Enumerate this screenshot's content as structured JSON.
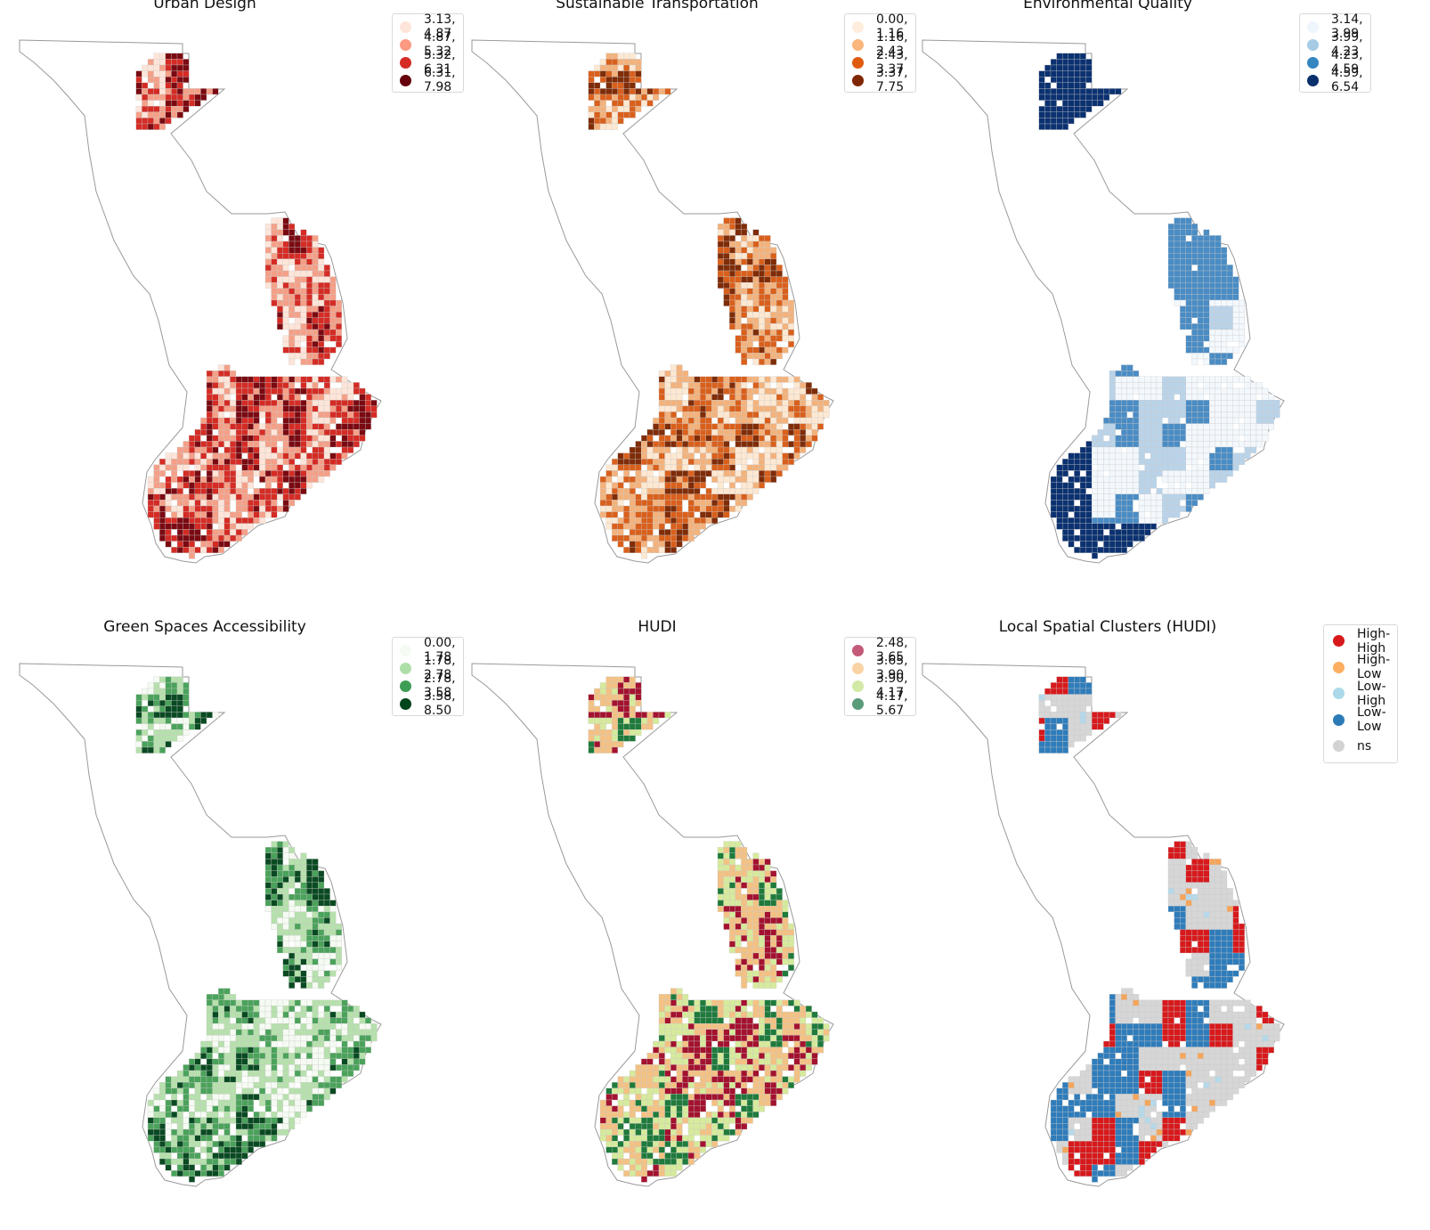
{
  "panels": [
    {
      "id": "urban",
      "title": "Urban Design",
      "legend": [
        {
          "label": "3.13, 4.87",
          "color": "#fee5d9"
        },
        {
          "label": "4.87, 5.32",
          "color": "#fb9a80"
        },
        {
          "label": "5.32, 6.31",
          "color": "#d42c25"
        },
        {
          "label": "6.31, 7.98",
          "color": "#67000d"
        }
      ]
    },
    {
      "id": "transport",
      "title": "Sustainable Transportation",
      "legend": [
        {
          "label": "0.00, 1.16",
          "color": "#feeddc"
        },
        {
          "label": "1.16, 2.43",
          "color": "#fbb67b"
        },
        {
          "label": "2.43, 3.37",
          "color": "#e05a0e"
        },
        {
          "label": "3.37, 7.75",
          "color": "#7f2704"
        }
      ]
    },
    {
      "id": "environment",
      "title": "Environmental Quality",
      "legend": [
        {
          "label": "3.14, 3.99",
          "color": "#eef5fc"
        },
        {
          "label": "3.99, 4.23",
          "color": "#a6cbe4"
        },
        {
          "label": "4.23, 4.59",
          "color": "#3585c0"
        },
        {
          "label": "4.59, 6.54",
          "color": "#08306b"
        }
      ]
    },
    {
      "id": "green",
      "title": "Green Spaces Accessibility",
      "legend": [
        {
          "label": "0.00, 1.78",
          "color": "#f5fbf2"
        },
        {
          "label": "1.78, 2.78",
          "color": "#aedea7"
        },
        {
          "label": "2.78, 3.58",
          "color": "#3f9e55"
        },
        {
          "label": "3.58, 8.50",
          "color": "#00441b"
        }
      ]
    },
    {
      "id": "hudi",
      "title": "HUDI",
      "legend": [
        {
          "label": "2.48, 3.65",
          "color": "#c45a7a"
        },
        {
          "label": "3.65, 3.90",
          "color": "#f9d3a4"
        },
        {
          "label": "3.90, 4.17",
          "color": "#d3e9a6"
        },
        {
          "label": "4.17, 5.67",
          "color": "#5a9b7a"
        }
      ]
    },
    {
      "id": "clusters",
      "title": "Local Spatial Clusters (HUDI)",
      "legend": [
        {
          "label": "High-High",
          "color": "#d7191c"
        },
        {
          "label": "High-Low",
          "color": "#fdae61"
        },
        {
          "label": "Low-High",
          "color": "#abd9e9"
        },
        {
          "label": "Low-Low",
          "color": "#2c7bb6"
        },
        {
          "label": "ns",
          "color": "#d3d3d3"
        }
      ]
    }
  ],
  "map_colors": {
    "urban": [
      "#fee5d9",
      "#f4a088",
      "#d42c25",
      "#7a0a12"
    ],
    "transport": [
      "#fde8d2",
      "#f3b27c",
      "#d9601c",
      "#7f2c08"
    ],
    "environment": [
      "#f3f8fd",
      "#b9d3e9",
      "#4a8cc4",
      "#0b3170"
    ],
    "green": [
      "#f5fbf2",
      "#b6e0ac",
      "#4ba25b",
      "#0a4a22"
    ],
    "hudi": [
      "#a3122f",
      "#f3c183",
      "#d6ea9c",
      "#1f7a3c"
    ],
    "clusters": [
      "#d7191c",
      "#f4a55c",
      "#b5d9ea",
      "#2f7cba",
      "#d6d6d6"
    ]
  }
}
